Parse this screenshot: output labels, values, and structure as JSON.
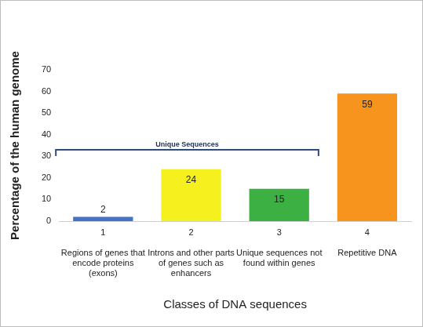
{
  "chart_data": {
    "type": "bar",
    "x_label": "Classes of DNA sequences",
    "y_label": "Percentage of the human genome",
    "categories": [
      "1",
      "2",
      "3",
      "4"
    ],
    "category_descriptions": [
      "Regions of genes that encode proteins (exons)",
      "Introns and other parts of genes such as enhancers",
      "Unique sequences not found within genes",
      "Repetitive DNA"
    ],
    "values": [
      2,
      24,
      15,
      59
    ],
    "colors": [
      "#4472c4",
      "#f5f01e",
      "#3cb043",
      "#f7941d"
    ],
    "ylim": [
      0,
      70
    ],
    "yticks": [
      0,
      10,
      20,
      30,
      40,
      50,
      60,
      70
    ],
    "grid": false,
    "data_labels": true,
    "annotations": [
      {
        "text": "Unique Sequences",
        "from": "1",
        "to": "3",
        "y": 33
      }
    ]
  }
}
